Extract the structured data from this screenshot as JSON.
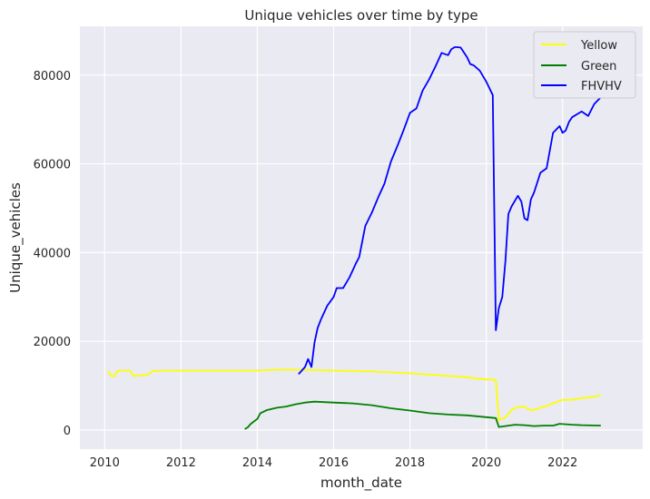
{
  "chart_data": {
    "type": "line",
    "title": "Unique vehicles over time by type",
    "xlabel": "month_date",
    "ylabel": "Unique_vehicles",
    "xlim": [
      2009.35,
      2024.1
    ],
    "ylim": [
      -4300,
      91000
    ],
    "x_ticks": [
      2010,
      2012,
      2014,
      2016,
      2018,
      2020,
      2022
    ],
    "x_tick_labels": [
      "2010",
      "2012",
      "2014",
      "2016",
      "2018",
      "2020",
      "2022"
    ],
    "y_ticks": [
      0,
      20000,
      40000,
      60000,
      80000
    ],
    "y_tick_labels": [
      "0",
      "20000",
      "40000",
      "60000",
      "80000"
    ],
    "grid": true,
    "legend_position": "top-right",
    "background": "#eaeaf2",
    "series": [
      {
        "name": "Yellow",
        "color": "#ffff00",
        "x": [
          2010.08,
          2010.17,
          2010.25,
          2010.33,
          2010.5,
          2010.67,
          2010.75,
          2010.83,
          2011.0,
          2011.17,
          2011.25,
          2011.5,
          2012.0,
          2013.0,
          2014.0,
          2014.5,
          2015.0,
          2015.5,
          2016.0,
          2016.5,
          2017.0,
          2017.5,
          2018.0,
          2018.5,
          2019.0,
          2019.5,
          2019.75,
          2020.0,
          2020.17,
          2020.25,
          2020.33,
          2020.5,
          2020.67,
          2020.83,
          2021.0,
          2021.17,
          2021.25,
          2021.5,
          2021.75,
          2022.0,
          2022.25,
          2022.5,
          2022.75,
          2023.0
        ],
        "y": [
          13300,
          12200,
          12100,
          13300,
          13400,
          13400,
          12200,
          12300,
          12300,
          12600,
          13300,
          13400,
          13400,
          13400,
          13400,
          13600,
          13600,
          13500,
          13400,
          13300,
          13200,
          13000,
          12800,
          12500,
          12200,
          11900,
          11600,
          11400,
          11400,
          11200,
          2200,
          2800,
          4600,
          5200,
          5300,
          4400,
          4600,
          5200,
          6000,
          6800,
          6800,
          7200,
          7400,
          7800
        ]
      },
      {
        "name": "Green",
        "color": "#008000",
        "x": [
          2013.67,
          2013.75,
          2013.83,
          2014.0,
          2014.08,
          2014.25,
          2014.5,
          2014.75,
          2015.0,
          2015.25,
          2015.5,
          2015.75,
          2016.0,
          2016.5,
          2017.0,
          2017.5,
          2018.0,
          2018.5,
          2019.0,
          2019.5,
          2019.75,
          2020.0,
          2020.25,
          2020.33,
          2020.5,
          2020.75,
          2021.0,
          2021.25,
          2021.5,
          2021.75,
          2021.92,
          2022.25,
          2022.5,
          2023.0
        ],
        "y": [
          200,
          600,
          1400,
          2500,
          3800,
          4500,
          5000,
          5300,
          5800,
          6200,
          6400,
          6300,
          6200,
          6000,
          5600,
          4900,
          4400,
          3800,
          3500,
          3300,
          3100,
          2900,
          2700,
          700,
          900,
          1200,
          1100,
          900,
          1000,
          1000,
          1400,
          1200,
          1100,
          1000
        ]
      },
      {
        "name": "FHVHV",
        "color": "#0000ff",
        "x": [
          2015.08,
          2015.25,
          2015.33,
          2015.42,
          2015.5,
          2015.58,
          2015.67,
          2015.83,
          2016.0,
          2016.08,
          2016.25,
          2016.42,
          2016.58,
          2016.67,
          2016.83,
          2017.0,
          2017.17,
          2017.33,
          2017.5,
          2017.67,
          2017.83,
          2018.0,
          2018.17,
          2018.33,
          2018.5,
          2018.67,
          2018.83,
          2019.0,
          2019.08,
          2019.17,
          2019.25,
          2019.33,
          2019.5,
          2019.58,
          2019.67,
          2019.83,
          2020.0,
          2020.17,
          2020.25,
          2020.33,
          2020.42,
          2020.5,
          2020.58,
          2020.67,
          2020.83,
          2020.92,
          2021.0,
          2021.08,
          2021.17,
          2021.25,
          2021.42,
          2021.58,
          2021.75,
          2021.92,
          2022.0,
          2022.08,
          2022.17,
          2022.25,
          2022.5,
          2022.67,
          2022.83,
          2023.0
        ],
        "y": [
          12600,
          14200,
          16000,
          14200,
          19800,
          23000,
          25000,
          28000,
          30000,
          32000,
          32000,
          34500,
          37500,
          39000,
          46000,
          49000,
          52500,
          55500,
          60500,
          64000,
          67500,
          71500,
          72500,
          76500,
          79000,
          82000,
          85000,
          84500,
          85800,
          86300,
          86300,
          86200,
          84000,
          82500,
          82200,
          81000,
          78500,
          75500,
          22500,
          27500,
          30000,
          38000,
          48700,
          50500,
          52800,
          51500,
          47700,
          47300,
          52000,
          53500,
          58000,
          59000,
          67000,
          68500,
          67000,
          67500,
          69500,
          70500,
          71800,
          70800,
          73500,
          75000
        ]
      }
    ]
  }
}
